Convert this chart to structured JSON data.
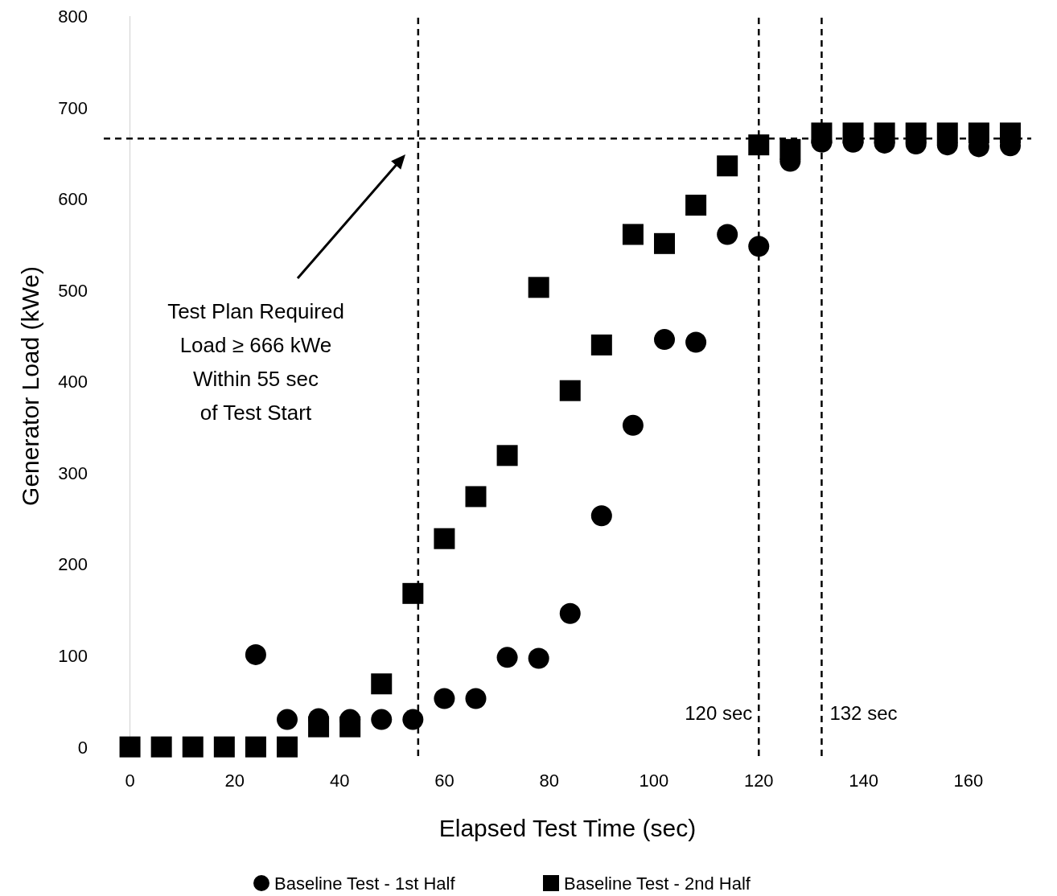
{
  "chart_data": {
    "type": "scatter",
    "xlabel": "Elapsed Test Time (sec)",
    "ylabel": "Generator Load (kWe)",
    "x": [
      0,
      6,
      12,
      18,
      24,
      30,
      36,
      42,
      48,
      54,
      60,
      66,
      72,
      78,
      84,
      90,
      96,
      102,
      108,
      114,
      120,
      126,
      132,
      138,
      144,
      150,
      156,
      162,
      168
    ],
    "series": [
      {
        "name": "Baseline Test - 1st Half",
        "color": "#000000",
        "marker": "circle",
        "values": [
          null,
          null,
          null,
          null,
          101,
          30,
          31,
          30,
          30,
          30,
          53,
          53,
          98,
          97,
          146,
          253,
          352,
          446,
          443,
          561,
          548,
          641,
          662,
          662,
          661,
          660,
          659,
          657,
          658
        ]
      },
      {
        "name": "Baseline Test - 2nd Half",
        "color": "#000000",
        "marker": "square",
        "values": [
          0,
          0,
          0,
          0,
          0,
          0,
          22,
          22,
          69,
          168,
          228,
          274,
          319,
          503,
          390,
          440,
          561,
          551,
          593,
          636,
          659,
          654,
          672,
          672,
          672,
          672,
          672,
          672,
          672
        ]
      }
    ],
    "xlim": [
      -5,
      172
    ],
    "xticks": [
      0,
      20,
      40,
      60,
      80,
      100,
      120,
      140,
      160
    ],
    "ylim": [
      -10,
      800
    ],
    "yticks": [
      0,
      100,
      200,
      300,
      400,
      500,
      600,
      700,
      800
    ],
    "grid": false,
    "legend": "bottom",
    "ref_lines": [
      {
        "axis": "y",
        "value": 666,
        "line_style": "dashed",
        "color": "#000000"
      },
      {
        "axis": "x",
        "value": 55,
        "line_style": "dashed",
        "color": "#000000"
      },
      {
        "axis": "x",
        "value": 120,
        "label": "120 sec",
        "line_style": "dashed",
        "color": "#000000"
      },
      {
        "axis": "x",
        "value": 132,
        "label": "132 sec",
        "line_style": "dashed",
        "color": "#000000"
      }
    ],
    "annotations": [
      "Test Plan Required\nLoad ≥ 666 kWe\nWithin 55 sec\nof Test Start"
    ]
  }
}
